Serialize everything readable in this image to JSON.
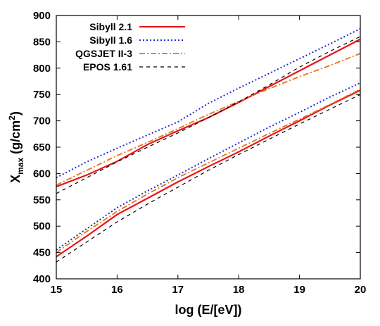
{
  "chart_data": {
    "type": "line",
    "xlabel": "log (E/[eV])",
    "ylabel": {
      "main": "X",
      "sub": "max",
      "units_pre": " (g/cm",
      "units_sup": "2",
      "units_post": ")"
    },
    "xlim": [
      15,
      20
    ],
    "ylim": [
      400,
      900
    ],
    "xticks": [
      15,
      16,
      17,
      18,
      19,
      20
    ],
    "yticks": [
      400,
      450,
      500,
      550,
      600,
      650,
      700,
      750,
      800,
      850,
      900
    ],
    "grid": false,
    "legend_position": "top-left",
    "series": [
      {
        "name": "Sibyll 2.1",
        "color": "#e8141a",
        "dash": "solid",
        "width": 2.2,
        "curves": [
          {
            "x": [
              15,
              15.5,
              16,
              16.5,
              17,
              17.5,
              18,
              18.5,
              19,
              19.5,
              20
            ],
            "y": [
              575,
              597,
              623,
              655,
              681,
              706,
              735,
              765,
              795,
              825,
              855
            ]
          },
          {
            "x": [
              15,
              15.5,
              16,
              16.5,
              17,
              17.5,
              18,
              18.5,
              19,
              19.5,
              20
            ],
            "y": [
              442,
              481,
              522,
              553,
              584,
              613,
              641,
              671,
              700,
              730,
              758
            ]
          }
        ]
      },
      {
        "name": "Sibyll 1.6",
        "color": "#1f2bd6",
        "dash": "2,3",
        "width": 2.0,
        "curves": [
          {
            "x": [
              15,
              15.5,
              16,
              16.5,
              17,
              17.5,
              18,
              18.5,
              19,
              19.5,
              20
            ],
            "y": [
              592,
              622,
              648,
              673,
              698,
              733,
              762,
              790,
              818,
              846,
              875
            ]
          },
          {
            "x": [
              15,
              15.5,
              16,
              16.5,
              17,
              17.5,
              18,
              18.5,
              19,
              19.5,
              20
            ],
            "y": [
              455,
              495,
              535,
              567,
              597,
              628,
              658,
              688,
              716,
              745,
              772
            ]
          }
        ]
      },
      {
        "name": "QGSJET II-3",
        "color": "#e2741f",
        "dash": "8,3,2,3",
        "width": 1.8,
        "curves": [
          {
            "x": [
              15,
              15.5,
              16,
              16.5,
              17,
              17.5,
              18,
              18.5,
              19,
              19.5,
              20
            ],
            "y": [
              578,
              606,
              634,
              659,
              685,
              712,
              737,
              761,
              784,
              805,
              828
            ]
          },
          {
            "x": [
              15,
              15.5,
              16,
              16.5,
              17,
              17.5,
              18,
              18.5,
              19,
              19.5,
              20
            ],
            "y": [
              450,
              490,
              528,
              561,
              592,
              620,
              648,
              676,
              703,
              731,
              760
            ]
          }
        ]
      },
      {
        "name": "EPOS 1.61",
        "color": "#000000",
        "dash": "5,5",
        "width": 1.2,
        "curves": [
          {
            "x": [
              15,
              15.5,
              16,
              16.5,
              17,
              17.5,
              18,
              18.5,
              19,
              19.5,
              20
            ],
            "y": [
              562,
              592,
              622,
              650,
              677,
              706,
              736,
              768,
              802,
              832,
              860
            ]
          },
          {
            "x": [
              15,
              15.5,
              16,
              16.5,
              17,
              17.5,
              18,
              18.5,
              19,
              19.5,
              20
            ],
            "y": [
              432,
              470,
              508,
              542,
              574,
              606,
              636,
              665,
              694,
              722,
              750
            ]
          }
        ]
      }
    ]
  }
}
